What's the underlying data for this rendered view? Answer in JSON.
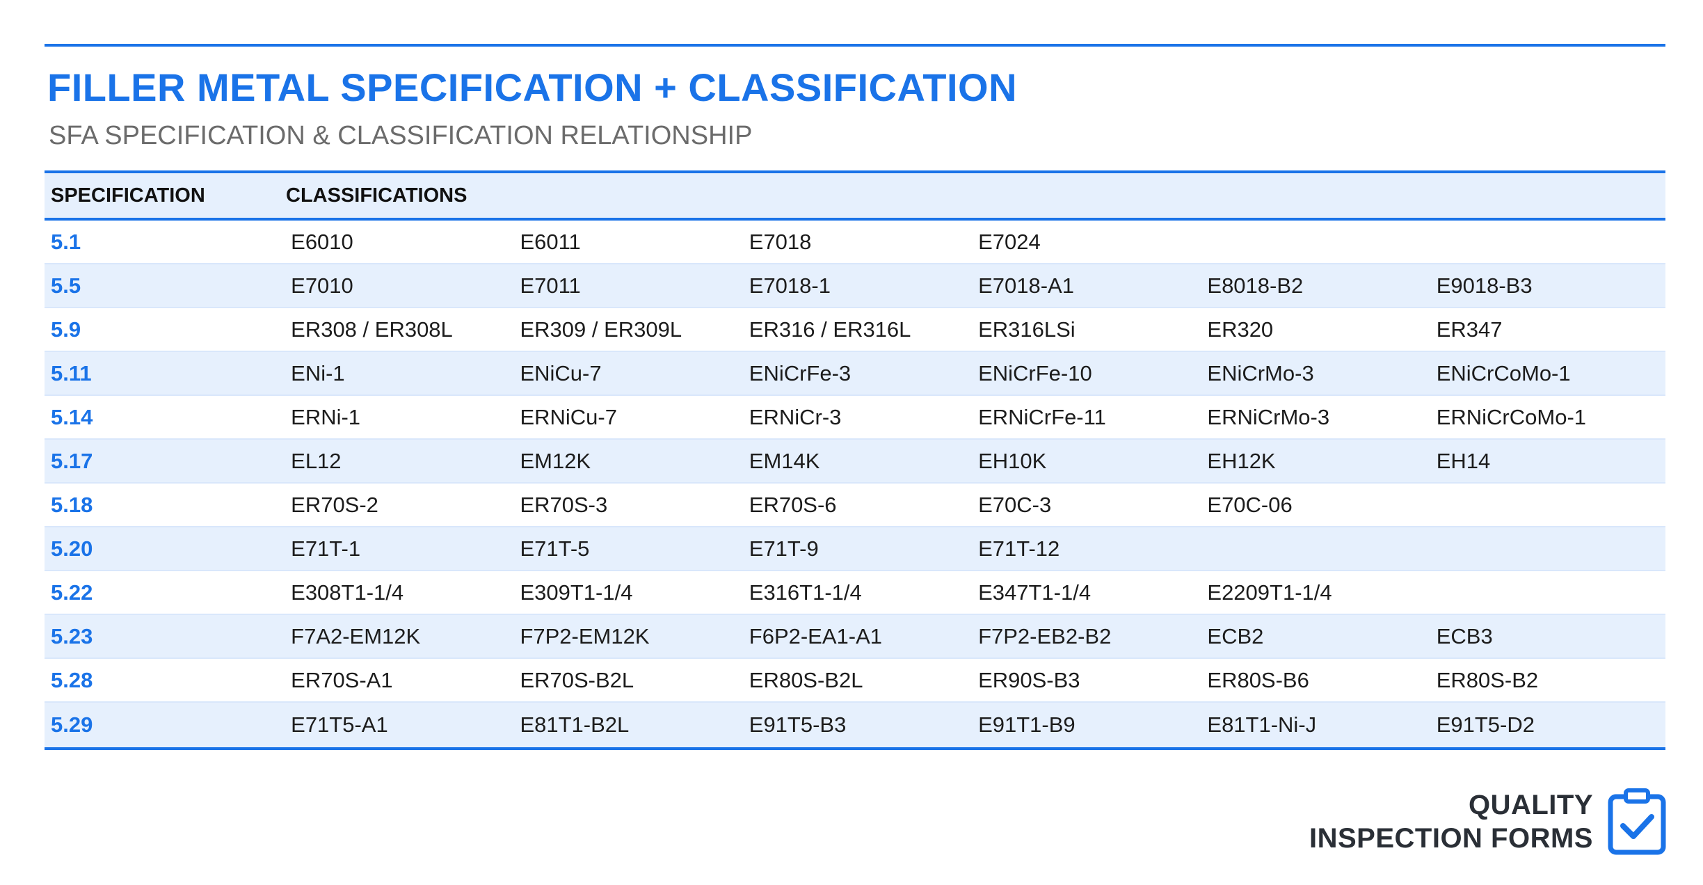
{
  "header": {
    "title": "FILLER METAL SPECIFICATION + CLASSIFICATION",
    "subtitle": "SFA SPECIFICATION & CLASSIFICATION RELATIONSHIP"
  },
  "table": {
    "columns": [
      "SPECIFICATION",
      "CLASSIFICATIONS"
    ],
    "rows": [
      {
        "spec": "5.1",
        "classes": [
          "E6010",
          "E6011",
          "E7018",
          "E7024",
          "",
          ""
        ]
      },
      {
        "spec": "5.5",
        "classes": [
          "E7010",
          "E7011",
          "E7018-1",
          "E7018-A1",
          "E8018-B2",
          "E9018-B3"
        ]
      },
      {
        "spec": "5.9",
        "classes": [
          "ER308 / ER308L",
          "ER309 / ER309L",
          "ER316 / ER316L",
          "ER316LSi",
          "ER320",
          "ER347"
        ]
      },
      {
        "spec": "5.11",
        "classes": [
          "ENi-1",
          "ENiCu-7",
          "ENiCrFe-3",
          "ENiCrFe-10",
          "ENiCrMo-3",
          "ENiCrCoMo-1"
        ]
      },
      {
        "spec": "5.14",
        "classes": [
          "ERNi-1",
          "ERNiCu-7",
          "ERNiCr-3",
          "ERNiCrFe-11",
          "ERNiCrMo-3",
          "ERNiCrCoMo-1"
        ]
      },
      {
        "spec": "5.17",
        "classes": [
          "EL12",
          "EM12K",
          "EM14K",
          "EH10K",
          "EH12K",
          "EH14"
        ]
      },
      {
        "spec": "5.18",
        "classes": [
          "ER70S-2",
          "ER70S-3",
          "ER70S-6",
          "E70C-3",
          "E70C-06",
          ""
        ]
      },
      {
        "spec": "5.20",
        "classes": [
          "E71T-1",
          "E71T-5",
          "E71T-9",
          "E71T-12",
          "",
          ""
        ]
      },
      {
        "spec": "5.22",
        "classes": [
          "E308T1-1/4",
          "E309T1-1/4",
          "E316T1-1/4",
          "E347T1-1/4",
          "E2209T1-1/4",
          ""
        ]
      },
      {
        "spec": "5.23",
        "classes": [
          "F7A2-EM12K",
          "F7P2-EM12K",
          "F6P2-EA1-A1",
          "F7P2-EB2-B2",
          "ECB2",
          "ECB3"
        ]
      },
      {
        "spec": "5.28",
        "classes": [
          "ER70S-A1",
          "ER70S-B2L",
          "ER80S-B2L",
          "ER90S-B3",
          "ER80S-B6",
          "ER80S-B2"
        ]
      },
      {
        "spec": "5.29",
        "classes": [
          "E71T5-A1",
          "E81T1-B2L",
          "E91T5-B3",
          "E91T1-B9",
          "E81T1-Ni-J",
          "E91T5-D2"
        ]
      }
    ]
  },
  "brand": {
    "line1": "QUALITY",
    "line2": "INSPECTION FORMS",
    "icon": "clipboard-check-icon"
  },
  "colors": {
    "accent": "#1a73e8",
    "row_alt": "#e6f0fd",
    "subtitle": "#6b6b6b",
    "brand_text": "#2a2f36"
  }
}
